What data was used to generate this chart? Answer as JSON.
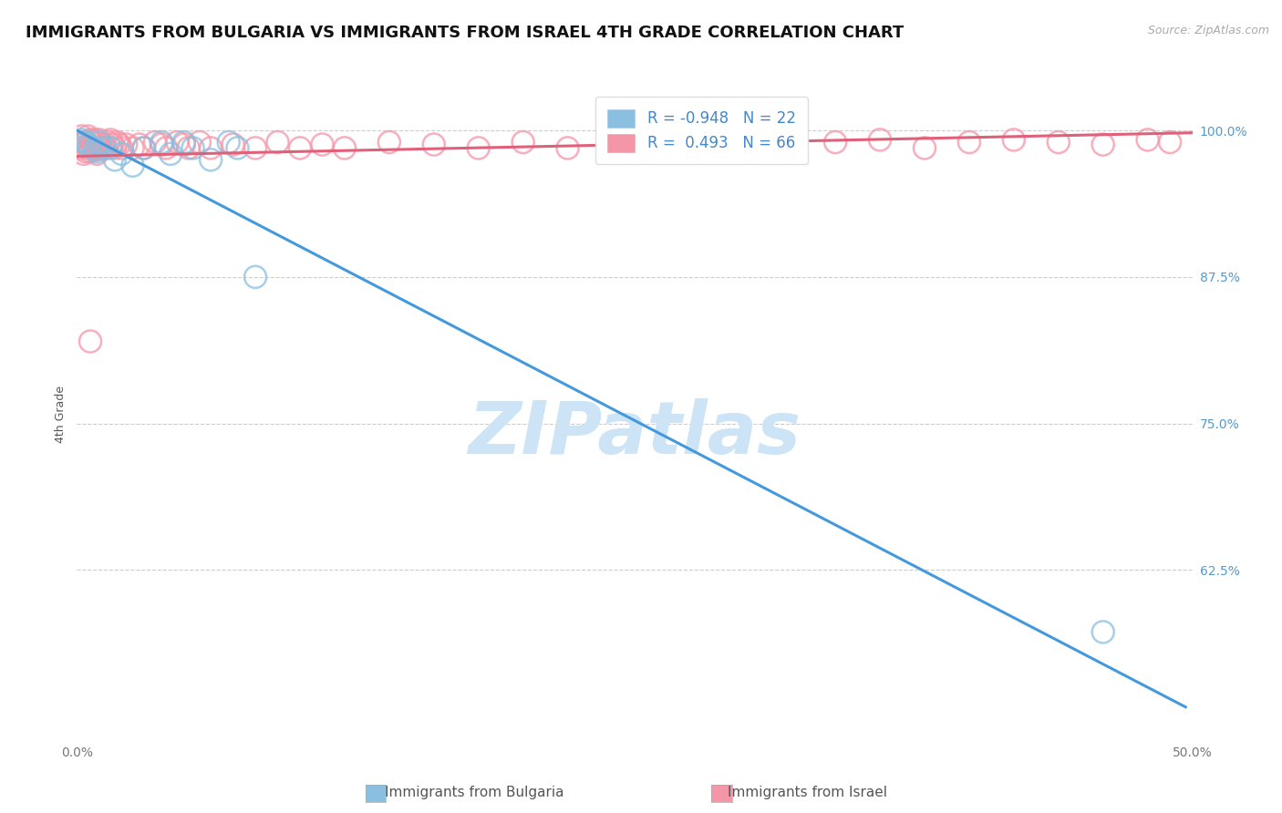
{
  "title": "IMMIGRANTS FROM BULGARIA VS IMMIGRANTS FROM ISRAEL 4TH GRADE CORRELATION CHART",
  "source_text": "Source: ZipAtlas.com",
  "xlabel_bottom_left": "0.0%",
  "xlabel_bottom_right": "50.0%",
  "ylabel": "4th Grade",
  "right_ytick_labels": [
    "100.0%",
    "87.5%",
    "75.0%",
    "62.5%"
  ],
  "right_ytick_values": [
    1.0,
    0.875,
    0.75,
    0.625
  ],
  "xlim": [
    0.0,
    0.5
  ],
  "ylim": [
    0.48,
    1.035
  ],
  "legend_R_blue": "-0.948",
  "legend_N_blue": "22",
  "legend_R_pink": "0.493",
  "legend_N_pink": "66",
  "blue_color": "#8bbfdf",
  "pink_color": "#f595a8",
  "blue_line_color": "#4499dd",
  "pink_line_color": "#e0607a",
  "watermark_text": "ZIPatlas",
  "watermark_color": "#cce4f5",
  "blue_scatter_x": [
    0.002,
    0.004,
    0.005,
    0.006,
    0.008,
    0.009,
    0.01,
    0.012,
    0.015,
    0.017,
    0.02,
    0.025,
    0.03,
    0.038,
    0.042,
    0.048,
    0.052,
    0.06,
    0.068,
    0.072,
    0.08,
    0.46
  ],
  "blue_scatter_y": [
    0.992,
    0.99,
    0.988,
    0.986,
    0.984,
    0.982,
    0.99,
    0.985,
    0.985,
    0.975,
    0.98,
    0.97,
    0.985,
    0.99,
    0.98,
    0.99,
    0.985,
    0.975,
    0.99,
    0.985,
    0.875,
    0.572
  ],
  "pink_scatter_x": [
    0.001,
    0.002,
    0.002,
    0.003,
    0.003,
    0.004,
    0.004,
    0.005,
    0.005,
    0.006,
    0.006,
    0.007,
    0.007,
    0.008,
    0.008,
    0.009,
    0.009,
    0.01,
    0.01,
    0.011,
    0.012,
    0.013,
    0.014,
    0.015,
    0.016,
    0.017,
    0.018,
    0.019,
    0.02,
    0.022,
    0.025,
    0.028,
    0.03,
    0.035,
    0.038,
    0.04,
    0.045,
    0.048,
    0.05,
    0.055,
    0.06,
    0.07,
    0.08,
    0.09,
    0.1,
    0.11,
    0.12,
    0.14,
    0.16,
    0.18,
    0.2,
    0.22,
    0.25,
    0.27,
    0.29,
    0.31,
    0.34,
    0.36,
    0.38,
    0.4,
    0.42,
    0.44,
    0.46,
    0.48,
    0.49,
    0.006
  ],
  "pink_scatter_y": [
    0.99,
    0.995,
    0.985,
    0.99,
    0.98,
    0.99,
    0.982,
    0.995,
    0.985,
    0.992,
    0.982,
    0.99,
    0.985,
    0.992,
    0.984,
    0.988,
    0.98,
    0.992,
    0.984,
    0.985,
    0.988,
    0.985,
    0.99,
    0.992,
    0.988,
    0.985,
    0.99,
    0.988,
    0.985,
    0.988,
    0.985,
    0.988,
    0.985,
    0.99,
    0.988,
    0.985,
    0.99,
    0.988,
    0.985,
    0.99,
    0.985,
    0.988,
    0.985,
    0.99,
    0.985,
    0.988,
    0.985,
    0.99,
    0.988,
    0.985,
    0.99,
    0.985,
    0.99,
    0.988,
    0.985,
    0.99,
    0.99,
    0.992,
    0.985,
    0.99,
    0.992,
    0.99,
    0.988,
    0.992,
    0.99,
    0.82
  ],
  "blue_line_x": [
    0.0,
    0.497
  ],
  "blue_line_y": [
    1.0,
    0.508
  ],
  "pink_line_x": [
    0.0,
    0.5
  ],
  "pink_line_y": [
    0.978,
    0.998
  ],
  "grid_color": "#cccccc",
  "bg_color": "#ffffff",
  "title_fontsize": 13,
  "axis_label_fontsize": 9,
  "tick_fontsize": 10,
  "legend_fontsize": 12
}
